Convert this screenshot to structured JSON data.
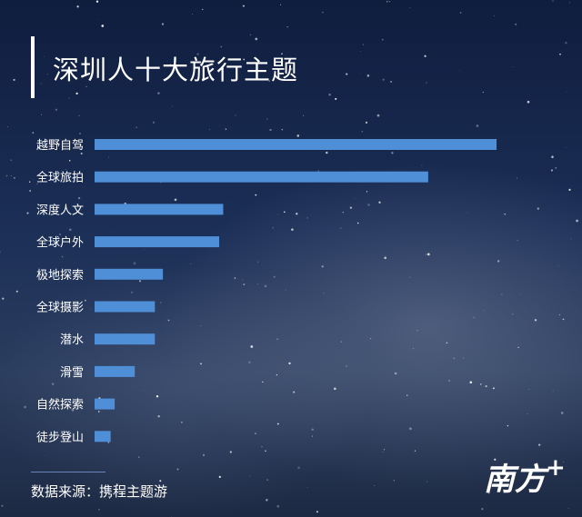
{
  "title": "深圳人十大旅行主题",
  "source": "数据来源：携程主题游",
  "logo": "南方+",
  "colors": {
    "bar": "#4f8fd8",
    "text": "#ffffff"
  },
  "chart_data": {
    "type": "bar",
    "orientation": "horizontal",
    "categories": [
      "越野自驾",
      "全球旅拍",
      "深度人文",
      "全球户外",
      "极地探索",
      "全球摄影",
      "潜水",
      "滑雪",
      "自然探索",
      "徒步登山"
    ],
    "values": [
      100,
      83,
      32,
      31,
      17,
      15,
      15,
      10,
      5,
      4
    ],
    "xlim": [
      0,
      100
    ],
    "grid": false,
    "legend": "none"
  }
}
